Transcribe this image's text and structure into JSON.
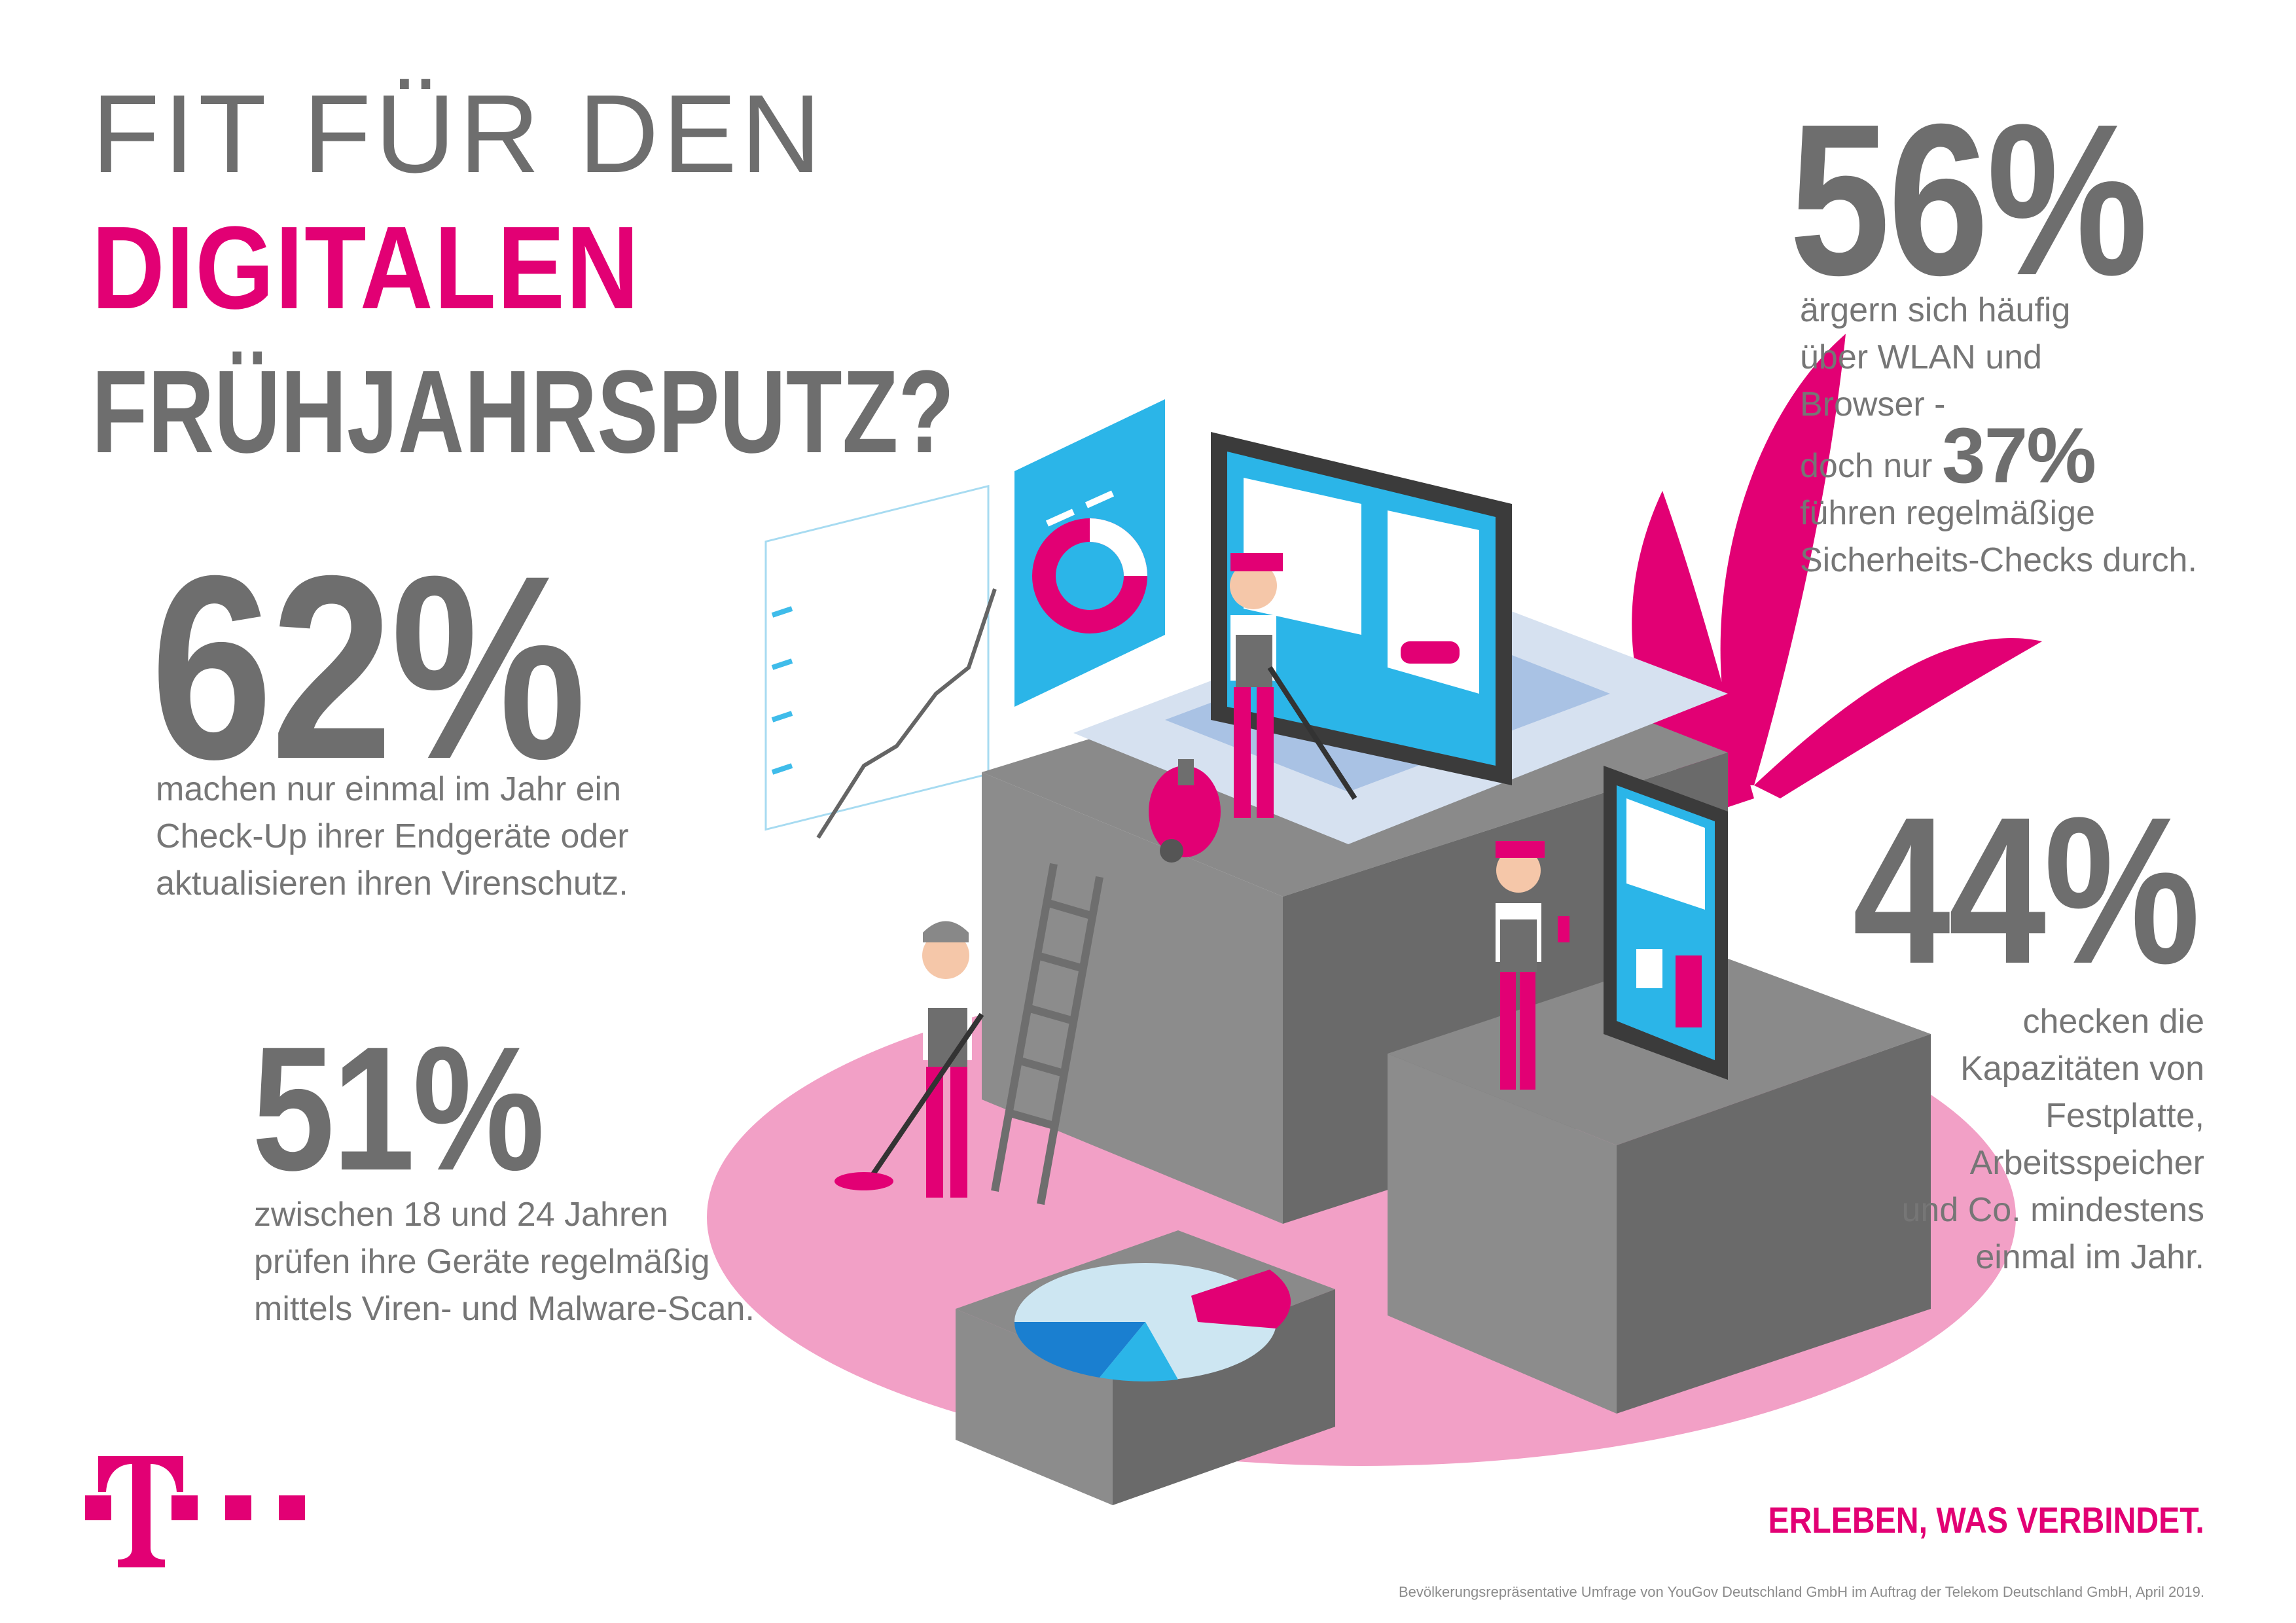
{
  "title": {
    "line1": "FIT FÜR DEN",
    "line2": "DIGITALEN",
    "line3": "FRÜHJAHRSPUTZ?"
  },
  "stats": {
    "s62": {
      "value": "62%",
      "text_lines": [
        "machen nur einmal im Jahr ein",
        "Check-Up ihrer Endgeräte oder",
        "aktualisieren ihren Virenschutz."
      ]
    },
    "s51": {
      "value": "51%",
      "text_lines": [
        "zwischen 18 und 24 Jahren",
        "prüfen ihre Geräte regelmäßig",
        "mittels Viren- und Malware-Scan."
      ]
    },
    "s56": {
      "value": "56%",
      "text_lines": [
        "ärgern sich häufig",
        "über WLAN und",
        "Browser -"
      ],
      "prefix_37": "doch nur",
      "value_37": "37%",
      "text_lines_after": [
        "führen regelmäßige",
        "Sicherheits-Checks durch."
      ]
    },
    "s44": {
      "value": "44%",
      "text_lines": [
        "checken die",
        "Kapazitäten von",
        "Festplatte,",
        "Arbeitsspeicher",
        "und Co. mindestens",
        "einmal im Jahr."
      ]
    }
  },
  "slogan": "ERLEBEN, WAS VERBINDET.",
  "footnote": "Bevölkerungsrepräsentative Umfrage von YouGov Deutschland GmbH im Auftrag der Telekom Deutschland GmbH, April 2019.",
  "colors": {
    "magenta": "#e20074",
    "grey": "#6e6e6e",
    "pink_floor": "#f2a0c6",
    "blue": "#2bb5e8"
  },
  "logo": {
    "icon": "telekom-t-logo-icon"
  }
}
